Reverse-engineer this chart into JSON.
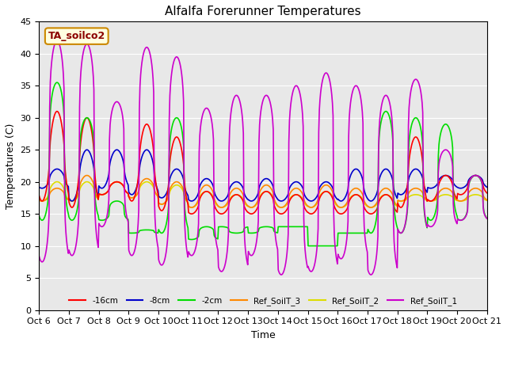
{
  "title": "Alfalfa Forerunner Temperatures",
  "xlabel": "Time",
  "ylabel": "Temperatures (C)",
  "ylim": [
    0,
    45
  ],
  "background_color": "#e8e8e8",
  "legend_label": "TA_soilco2",
  "series_colors": {
    "-16cm": "#ff0000",
    "-8cm": "#0000cc",
    "-2cm": "#00dd00",
    "Ref_SoilT_3": "#ff8800",
    "Ref_SoilT_2": "#dddd00",
    "Ref_SoilT_1": "#cc00cc"
  },
  "tick_labels": [
    "Oct 6",
    "Oct 7",
    "Oct 8",
    "Oct 9",
    "Oct 10",
    "Oct 11",
    "Oct 12",
    "Oct 13",
    "Oct 14",
    "Oct 15",
    "Oct 16",
    "Oct 17",
    "Oct 18",
    "Oct 19",
    "Oct 20",
    "Oct 21"
  ],
  "n_days": 15,
  "pts_per_day": 48,
  "series": {
    "purple_peaks": [
      42,
      41.5,
      32.5,
      41,
      39.5,
      31.5,
      33.5,
      33.5,
      35,
      37,
      35,
      33.5,
      36,
      25,
      21
    ],
    "purple_mins": [
      7.5,
      8.5,
      13,
      8.5,
      7,
      8.5,
      6,
      8.5,
      5.5,
      6,
      8,
      5.5,
      12,
      13,
      14
    ],
    "green_peaks": [
      35.5,
      30,
      17,
      12.5,
      30,
      13,
      12,
      13,
      13,
      10,
      12,
      31,
      30,
      29,
      21
    ],
    "green_mins": [
      14,
      14,
      14,
      12,
      12,
      11,
      13,
      12,
      13,
      10,
      12,
      12,
      12,
      14,
      14
    ],
    "red_peaks": [
      31,
      30,
      20,
      29,
      27,
      18.5,
      18,
      18.5,
      18,
      18.5,
      18,
      18,
      27,
      21,
      21
    ],
    "red_mins": [
      17,
      16,
      18,
      17,
      15.5,
      15,
      15,
      15,
      15,
      15,
      15,
      15,
      16,
      17,
      18
    ],
    "blue_peaks": [
      22,
      25,
      25,
      25,
      22,
      20.5,
      20,
      20.5,
      20,
      20,
      22,
      22,
      22,
      21,
      21
    ],
    "blue_mins": [
      19,
      17,
      19,
      18,
      17.5,
      17,
      17,
      17,
      17,
      17,
      17,
      17,
      18,
      19,
      19
    ],
    "orange_peaks": [
      19,
      21,
      20,
      20.5,
      20,
      19.5,
      19,
      19.5,
      19,
      19.5,
      19,
      19,
      19,
      19,
      19
    ],
    "orange_mins": [
      17,
      17,
      18,
      17.5,
      16.5,
      16,
      16,
      16,
      16,
      16,
      16,
      16,
      17,
      17,
      17
    ],
    "yellow_peaks": [
      20,
      20,
      20,
      20,
      19.5,
      18.5,
      18,
      18.5,
      18,
      18.5,
      18,
      18,
      18,
      18,
      18
    ],
    "yellow_mins": [
      17,
      17,
      18,
      17.5,
      16.5,
      16,
      16,
      16,
      16,
      16,
      16,
      16,
      17,
      17,
      17
    ]
  }
}
